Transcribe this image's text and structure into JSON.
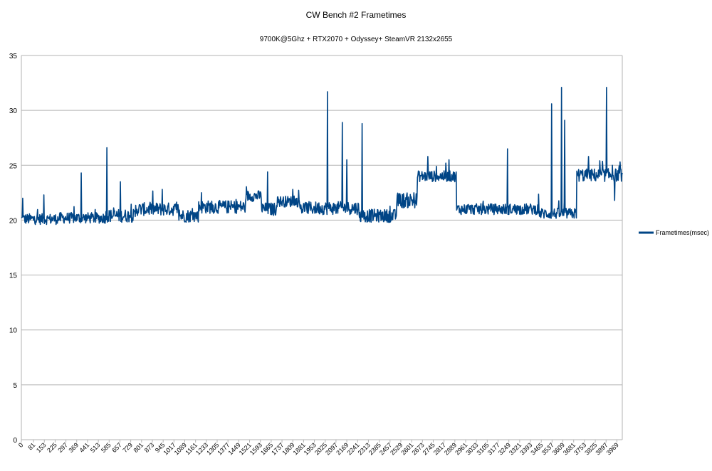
{
  "chart_data": {
    "type": "line",
    "title": "CW Bench #2 Frametimes",
    "subtitle": "9700K@5Ghz + RTX2070 + Odyssey+   SteamVR 2132x2655",
    "xlabel": "",
    "ylabel": "",
    "ylim": [
      0,
      35
    ],
    "yticks": [
      0,
      5,
      10,
      15,
      20,
      25,
      30,
      35
    ],
    "xlim": [
      0,
      4005
    ],
    "xticks": [
      0,
      81,
      153,
      225,
      297,
      369,
      441,
      513,
      585,
      657,
      729,
      801,
      873,
      945,
      1017,
      1089,
      1161,
      1233,
      1305,
      1377,
      1449,
      1521,
      1593,
      1665,
      1737,
      1809,
      1881,
      1953,
      2025,
      2097,
      2169,
      2241,
      2313,
      2385,
      2457,
      2529,
      2601,
      2673,
      2745,
      2817,
      2889,
      2961,
      3033,
      3105,
      3177,
      3249,
      3321,
      3393,
      3465,
      3537,
      3609,
      3681,
      3753,
      3825,
      3897,
      3969
    ],
    "grid": true,
    "legend": "right",
    "series": [
      {
        "name": "Frametimes(msec)",
        "color": "#004586",
        "segments": [
          {
            "from": 0,
            "to": 250,
            "mean": 20.1,
            "jitter": 0.5
          },
          {
            "from": 250,
            "to": 560,
            "mean": 20.2,
            "jitter": 0.5
          },
          {
            "from": 560,
            "to": 760,
            "mean": 20.4,
            "jitter": 0.6
          },
          {
            "from": 760,
            "to": 1050,
            "mean": 21.0,
            "jitter": 0.6
          },
          {
            "from": 1050,
            "to": 1180,
            "mean": 20.4,
            "jitter": 0.6
          },
          {
            "from": 1180,
            "to": 1500,
            "mean": 21.2,
            "jitter": 0.6
          },
          {
            "from": 1500,
            "to": 1600,
            "mean": 22.2,
            "jitter": 0.5
          },
          {
            "from": 1600,
            "to": 1700,
            "mean": 21.0,
            "jitter": 0.6
          },
          {
            "from": 1700,
            "to": 1850,
            "mean": 21.7,
            "jitter": 0.5
          },
          {
            "from": 1850,
            "to": 2250,
            "mean": 21.1,
            "jitter": 0.6
          },
          {
            "from": 2250,
            "to": 2500,
            "mean": 20.4,
            "jitter": 0.6
          },
          {
            "from": 2500,
            "to": 2640,
            "mean": 21.8,
            "jitter": 0.7
          },
          {
            "from": 2640,
            "to": 2900,
            "mean": 24.0,
            "jitter": 0.5
          },
          {
            "from": 2900,
            "to": 3450,
            "mean": 21.0,
            "jitter": 0.5
          },
          {
            "from": 3450,
            "to": 3700,
            "mean": 20.6,
            "jitter": 0.5
          },
          {
            "from": 3700,
            "to": 4005,
            "mean": 24.1,
            "jitter": 0.6
          }
        ],
        "spikes": [
          {
            "x": 10,
            "y": 22.0
          },
          {
            "x": 150,
            "y": 22.3
          },
          {
            "x": 400,
            "y": 24.3
          },
          {
            "x": 570,
            "y": 26.6
          },
          {
            "x": 660,
            "y": 23.5
          },
          {
            "x": 940,
            "y": 22.8
          },
          {
            "x": 1200,
            "y": 22.5
          },
          {
            "x": 1640,
            "y": 24.4
          },
          {
            "x": 1810,
            "y": 22.8
          },
          {
            "x": 2040,
            "y": 31.7
          },
          {
            "x": 2140,
            "y": 28.9
          },
          {
            "x": 2170,
            "y": 25.5
          },
          {
            "x": 2270,
            "y": 28.8
          },
          {
            "x": 2710,
            "y": 25.8
          },
          {
            "x": 2850,
            "y": 25.5
          },
          {
            "x": 3240,
            "y": 26.5
          },
          {
            "x": 3535,
            "y": 30.6
          },
          {
            "x": 3600,
            "y": 32.1
          },
          {
            "x": 3620,
            "y": 29.1
          },
          {
            "x": 3780,
            "y": 25.8
          },
          {
            "x": 3900,
            "y": 32.1
          },
          {
            "x": 3940,
            "y": 25.0
          },
          {
            "x": 3955,
            "y": 21.8
          }
        ]
      }
    ]
  }
}
